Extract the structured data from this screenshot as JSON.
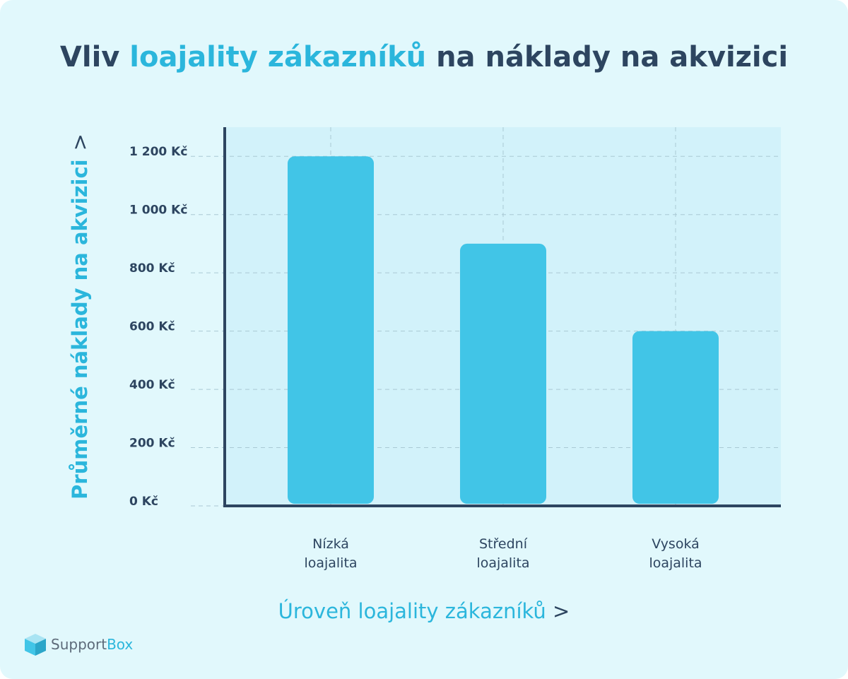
{
  "chart_data": {
    "type": "bar",
    "title": {
      "start": "Vliv",
      "highlight": "loajality zákazníků",
      "end": "na náklady na akvizici"
    },
    "y_label": "Průměrné náklady na akvizici",
    "y_label_arrow": ">",
    "x_label": "Úroveň loajality zákazníků",
    "x_label_arrow": ">",
    "categories": [
      "Nízká loajalita",
      "Střední loajalita",
      "Vysoká loajalita"
    ],
    "values": [
      1200,
      900,
      600
    ],
    "color": "#41c5e7",
    "highlight_color": "#2bb6dc",
    "text_color": "#2d4560",
    "ylim": [
      0,
      1300
    ],
    "yticks": [
      {
        "value": 0,
        "label": "0 Kč"
      },
      {
        "value": 200,
        "label": "200 Kč"
      },
      {
        "value": 400,
        "label": "400 Kč"
      },
      {
        "value": 600,
        "label": "600 Kč"
      },
      {
        "value": 800,
        "label": "800 Kč"
      },
      {
        "value": 1000,
        "label": "1 000 Kč"
      },
      {
        "value": 1200,
        "label": "1 200 Kč"
      }
    ],
    "grid": true
  },
  "logo": {
    "first": "Support",
    "second": "Box"
  }
}
